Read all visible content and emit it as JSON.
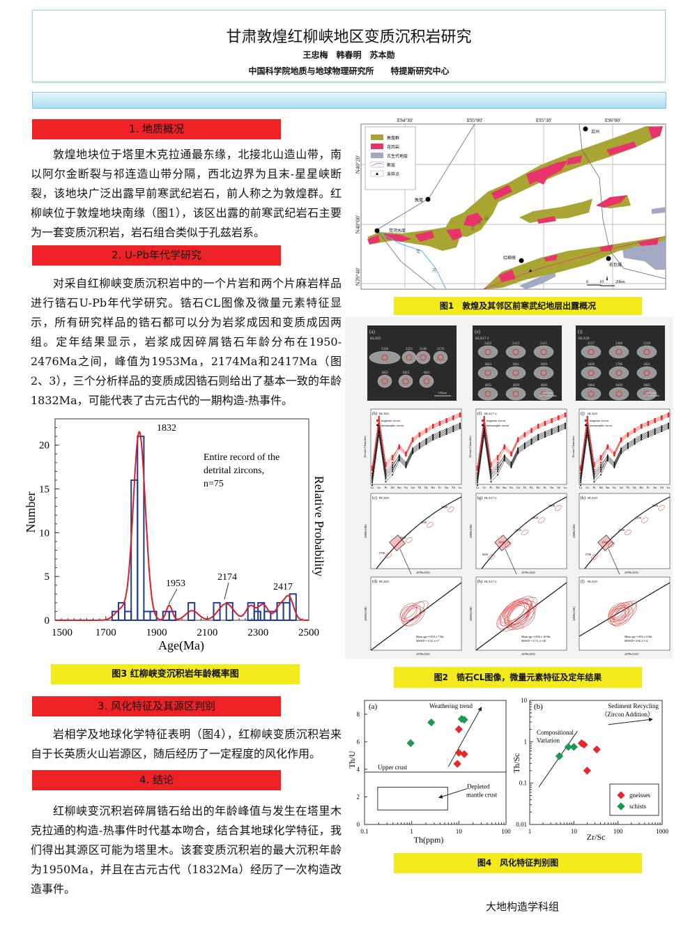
{
  "header": {
    "title": "甘肃敦煌红柳峡地区变质沉积岩研究",
    "authors": "王忠梅　韩春明　苏本勋",
    "affiliation": "中国科学院地质与地球物理研究所　　特提斯研究中心"
  },
  "sections": [
    {
      "heading": "1.  地质概况",
      "text": "敦煌地块位于塔里木克拉通最东缘，北接北山造山带，南以阿尔金断裂与祁连造山带分隔，西北边界为且末-星星峡断裂，该地块广泛出露早前寒武纪岩石，前人称之为敦煌群。红柳峡位于敦煌地块南缘（图1），该区出露的前寒武纪岩石主要为一套变质沉积岩，岩石组合类似于孔兹岩系。"
    },
    {
      "heading": "2. U-Pb年代学研究",
      "text": "对采自红柳峡变质沉积岩中的一个片岩和两个片麻岩样品进行锆石U-Pb年代学研究。锆石CL图像及微量元素特征显示，所有研究样品的锆石都可以分为岩浆成因和变质成因两组。定年结果显示，岩浆成因碎屑锆石年龄分布在1950-2476Ma之间，峰值为1953Ma，2174Ma和2417Ma（图2、3），三个分析样品的变质成因锆石则给出了基本一致的年龄1832Ma，可能代表了古元古代的一期构造-热事件。"
    },
    {
      "heading": "3.  风化特征及其源区判别",
      "text": "岩相学及地球化学特征表明（图4），红柳峡变质沉积岩来自于长英质火山岩源区，随后经历了一定程度的风化作用。"
    },
    {
      "heading": "4.  结论",
      "text": "红柳峡变沉积岩碎屑锆石给出的年龄峰值与发生在塔里木克拉通的构造-热事件时代基本吻合，结合其地球化学特征，我们得出其源区可能为塔里木。该套变质沉积岩的最大沉积年龄为1950Ma，并且在古元古代（1832Ma）经历了一次构造改造事件。"
    }
  ],
  "figure1": {
    "caption": "图1　敦煌及其邻区前寒武纪地层出露概况",
    "lon_labels": [
      "E94°30'",
      "E95°00'",
      "E95°30'",
      "E96°00'"
    ],
    "lat_labels": [
      "N40°20'",
      "N40°00'",
      "N39°40'"
    ],
    "legend": [
      "敦煌群",
      "花岗岩",
      "古生代地层",
      "断层",
      "采样点"
    ],
    "places": [
      "瓜州",
      "敦煌",
      "党河水库",
      "红柳峡",
      "石包城"
    ],
    "mountain": [
      "三",
      "危",
      "山"
    ],
    "river": [
      "党",
      "河"
    ],
    "scale": [
      "0",
      "10",
      "20km"
    ],
    "colors": {
      "dunhuang_group": "#a8a533",
      "granite": "#e8336b",
      "paleozoic": "#a3a9c3"
    }
  },
  "figure2": {
    "caption": "图2　锆石CL图像，微量元素特征及定年结果",
    "columns": [
      {
        "cl_label": "(a)",
        "sample": "HLX05",
        "ages": [
          "2336",
          "2255",
          "2146",
          "2176",
          "1832",
          "1822",
          "1821"
        ],
        "ree_label": "(b)",
        "conc_label": "(c)",
        "zoom_label": "(d)",
        "conc_ages": [
          "1700",
          "1900",
          "2100",
          "2300"
        ],
        "mean_age": "Mean age =1818 ± 7 Ma",
        "mswd": "MSWD = 0.54, n =7"
      },
      {
        "cl_label": "(e)",
        "sample": "HLX17-2",
        "ages": [
          "2432",
          "2412",
          "2415",
          "1843",
          "1841",
          "1820",
          "1835",
          "1839",
          "1836"
        ],
        "ree_label": "(f)",
        "conc_label": "(g)",
        "zoom_label": "(h)",
        "conc_ages": [
          "1600",
          "2000",
          "2200",
          "2400",
          "2600"
        ],
        "mean_age": "Mean age =1830 ± 10 Ma",
        "mswd": "MSWD = 0.73, n =28"
      },
      {
        "cl_label": "(i)",
        "sample": "HLX29",
        "ages": [
          "2157",
          "2369",
          "2219",
          "1838",
          "1796",
          "1831",
          "1804",
          "1830",
          "1845"
        ],
        "ree_label": "(j)",
        "conc_label": "(k)",
        "zoom_label": "(l)",
        "conc_ages": [
          "1700",
          "1900",
          "2100",
          "2300",
          "2500"
        ],
        "mean_age": "Mean age =1833 ± 9 Ma",
        "mswd": "MSWD= 0.68, n =11"
      }
    ],
    "scale_bar": "100μm",
    "ree_elements": [
      "La",
      "Ce",
      "Pr",
      "Nd",
      "Sm",
      "Eu",
      "Gd",
      "Tb",
      "Dy",
      "Ho",
      "Er",
      "Tm",
      "Yb",
      "Lu"
    ],
    "ree_ylabel": "Zircon/Chondrite",
    "legend": [
      "magmatic zircon",
      "metamorphic zircon"
    ],
    "conc_xlabel": "207Pb/235U",
    "conc_ylabel": "206Pb/238U"
  },
  "figure3": {
    "caption": "图3 红柳峡变沉积岩年龄概率图"
  },
  "figure4": {
    "caption": "图4　风化特征判别图"
  },
  "chart_data": [
    {
      "type": "bar",
      "title": "",
      "xlabel": "Age(Ma)",
      "ylabel": "Number",
      "y2label": "Relative Probability",
      "xlim": [
        1500,
        2500
      ],
      "ylim": [
        0,
        23
      ],
      "xticks": [
        "1500",
        "1700",
        "1900",
        "2100",
        "2300",
        "2500"
      ],
      "yticks": [
        "0",
        "5",
        "10",
        "15",
        "20"
      ],
      "bin_width": 25,
      "bins": [
        [
          1725,
          1
        ],
        [
          1750,
          2
        ],
        [
          1775,
          1
        ],
        [
          1800,
          16
        ],
        [
          1825,
          21
        ],
        [
          1850,
          1
        ],
        [
          1875,
          1
        ],
        [
          1925,
          1
        ],
        [
          1950,
          1
        ],
        [
          2025,
          2
        ],
        [
          2125,
          2
        ],
        [
          2175,
          2
        ],
        [
          2260,
          2
        ],
        [
          2285,
          1
        ],
        [
          2300,
          2
        ],
        [
          2325,
          1
        ],
        [
          2350,
          1
        ],
        [
          2375,
          2
        ],
        [
          2400,
          2
        ],
        [
          2425,
          3
        ]
      ],
      "probability_components": [
        [
          1832,
          21.5,
          24
        ],
        [
          1760,
          1.2,
          25
        ],
        [
          1950,
          1.7,
          12
        ],
        [
          2040,
          1.1,
          25
        ],
        [
          2174,
          1.9,
          30
        ],
        [
          2270,
          1.6,
          18
        ],
        [
          2320,
          1.8,
          20
        ],
        [
          2385,
          1.5,
          18
        ],
        [
          2422,
          2.6,
          18
        ]
      ],
      "peak_labels": [
        "1832",
        "1953",
        "2174",
        "2417"
      ],
      "annotation": [
        "Entire record of the",
        "detrital zircons,",
        "n=75"
      ]
    },
    {
      "type": "scatter",
      "panel": "(a)",
      "xlabel": "Th(ppm)",
      "ylabel": "Th/U",
      "xscale": "log",
      "xlim": [
        0.1,
        100
      ],
      "ylim": [
        0,
        9
      ],
      "xticks": [
        "0.1",
        "1",
        "10",
        "100"
      ],
      "yticks": [
        "0",
        "2",
        "4",
        "6",
        "8"
      ],
      "series": [
        {
          "name": "gneisses",
          "color": "#e8262b",
          "points": [
            [
              10,
              6.9
            ],
            [
              10,
              5.2
            ],
            [
              13,
              5.1
            ],
            [
              9.3,
              4.4
            ]
          ]
        },
        {
          "name": "schists",
          "color": "#1a9a4a",
          "points": [
            [
              0.95,
              5.9
            ],
            [
              2.6,
              7.4
            ],
            [
              11.5,
              7.65
            ],
            [
              13,
              7.6
            ]
          ]
        }
      ],
      "annotations": [
        "Weathering trend",
        "Upper crust",
        "Depleted",
        "mantle crust"
      ],
      "upper_crust_thu": 3.8
    },
    {
      "type": "scatter",
      "panel": "(b)",
      "xlabel": "Zr/Sc",
      "ylabel": "Th/Sc",
      "xscale": "log",
      "yscale": "log",
      "xlim": [
        1,
        1000
      ],
      "ylim": [
        0.01,
        10
      ],
      "xticks": [
        "1",
        "10",
        "100",
        "1000"
      ],
      "yticks": [
        "0.01",
        "0.1",
        "1",
        "10"
      ],
      "series": [
        {
          "name": "gneisses",
          "color": "#e8262b",
          "points": [
            [
              15,
              0.92
            ],
            [
              17,
              0.85
            ],
            [
              33,
              0.65
            ],
            [
              20,
              0.2
            ]
          ]
        },
        {
          "name": "schists",
          "color": "#1a9a4a",
          "points": [
            [
              4.7,
              0.45
            ],
            [
              7.5,
              0.75
            ],
            [
              10,
              0.75
            ]
          ]
        }
      ],
      "annotations": [
        "Sediment Recycling",
        "（Zircon Addition）",
        "Compositional",
        "Variation"
      ],
      "legend": [
        "gneisses",
        "schists"
      ],
      "legend_position": "bottom-right"
    }
  ],
  "footer": "大地构造学科组"
}
